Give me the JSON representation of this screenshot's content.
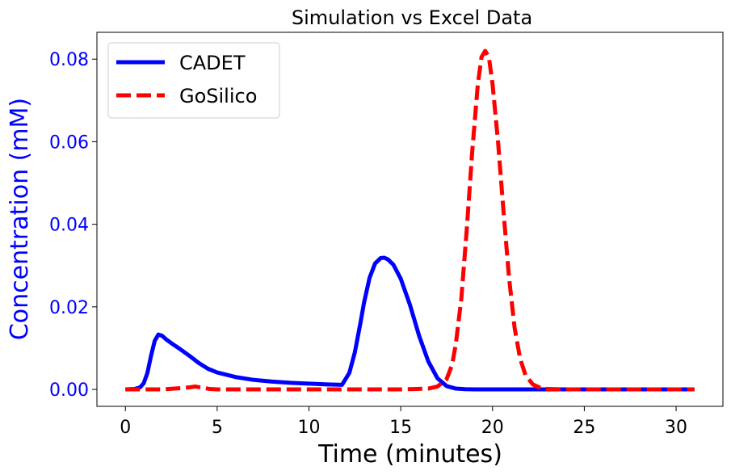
{
  "chart_data": {
    "type": "line",
    "title": "Simulation vs Excel Data",
    "xlabel": "Time (minutes)",
    "ylabel": "Concentration (mM)",
    "xlim": [
      -1.55,
      32.55
    ],
    "ylim": [
      -0.0041,
      0.0865
    ],
    "xticks": [
      0,
      5,
      10,
      15,
      20,
      25,
      30
    ],
    "yticks": [
      0.0,
      0.02,
      0.04,
      0.06,
      0.08
    ],
    "xtick_labels": [
      "0",
      "5",
      "10",
      "15",
      "20",
      "25",
      "30"
    ],
    "ytick_labels": [
      "0.00",
      "0.02",
      "0.04",
      "0.06",
      "0.08"
    ],
    "legend_position": "top-left",
    "axis_label_color": "#0000ff",
    "series": [
      {
        "name": "CADET",
        "color": "#0000ff",
        "style": "solid",
        "x": [
          0,
          0.5,
          0.8,
          1.0,
          1.2,
          1.4,
          1.6,
          1.8,
          2.0,
          2.2,
          2.5,
          3.0,
          3.5,
          4.0,
          4.5,
          5.0,
          6.0,
          7.0,
          8.0,
          9.0,
          10.0,
          11.0,
          11.8,
          12.2,
          12.5,
          12.8,
          13.0,
          13.3,
          13.6,
          13.9,
          14.1,
          14.3,
          14.6,
          15.0,
          15.5,
          16.0,
          16.5,
          17.0,
          17.5,
          18.0,
          18.5,
          19.0,
          20.0,
          22.0,
          25.0,
          28.0,
          31.0
        ],
        "y": [
          0.0,
          0.0001,
          0.0005,
          0.0015,
          0.004,
          0.0082,
          0.0118,
          0.0133,
          0.013,
          0.0122,
          0.0112,
          0.0097,
          0.0081,
          0.0064,
          0.005,
          0.0041,
          0.003,
          0.0023,
          0.0019,
          0.0016,
          0.0014,
          0.0012,
          0.0011,
          0.004,
          0.009,
          0.016,
          0.021,
          0.027,
          0.0305,
          0.0318,
          0.0319,
          0.0315,
          0.0302,
          0.0268,
          0.0205,
          0.013,
          0.0068,
          0.0027,
          0.0008,
          0.0002,
          5e-05,
          0.0,
          0.0,
          0.0,
          0.0,
          0.0,
          0.0
        ]
      },
      {
        "name": "GoSilico",
        "color": "#ff0000",
        "style": "dashed",
        "x": [
          0,
          2.0,
          3.0,
          3.5,
          3.8,
          4.2,
          4.6,
          5.0,
          8.0,
          12.0,
          15.0,
          16.5,
          17.0,
          17.5,
          17.8,
          18.0,
          18.3,
          18.6,
          18.9,
          19.2,
          19.4,
          19.6,
          19.8,
          20.0,
          20.3,
          20.6,
          20.9,
          21.2,
          21.5,
          21.8,
          22.2,
          22.6,
          23.0,
          24.0,
          27.0,
          31.0
        ],
        "y": [
          0.0,
          0.0,
          0.0003,
          0.0005,
          0.0007,
          0.0004,
          0.0001,
          0.0,
          0.0,
          0.0,
          0.0,
          0.0002,
          0.0007,
          0.0025,
          0.006,
          0.011,
          0.022,
          0.039,
          0.058,
          0.074,
          0.0805,
          0.082,
          0.0805,
          0.074,
          0.06,
          0.043,
          0.027,
          0.015,
          0.0075,
          0.0034,
          0.0012,
          0.0004,
          0.0001,
          0.0,
          0.0,
          0.0
        ]
      }
    ]
  }
}
